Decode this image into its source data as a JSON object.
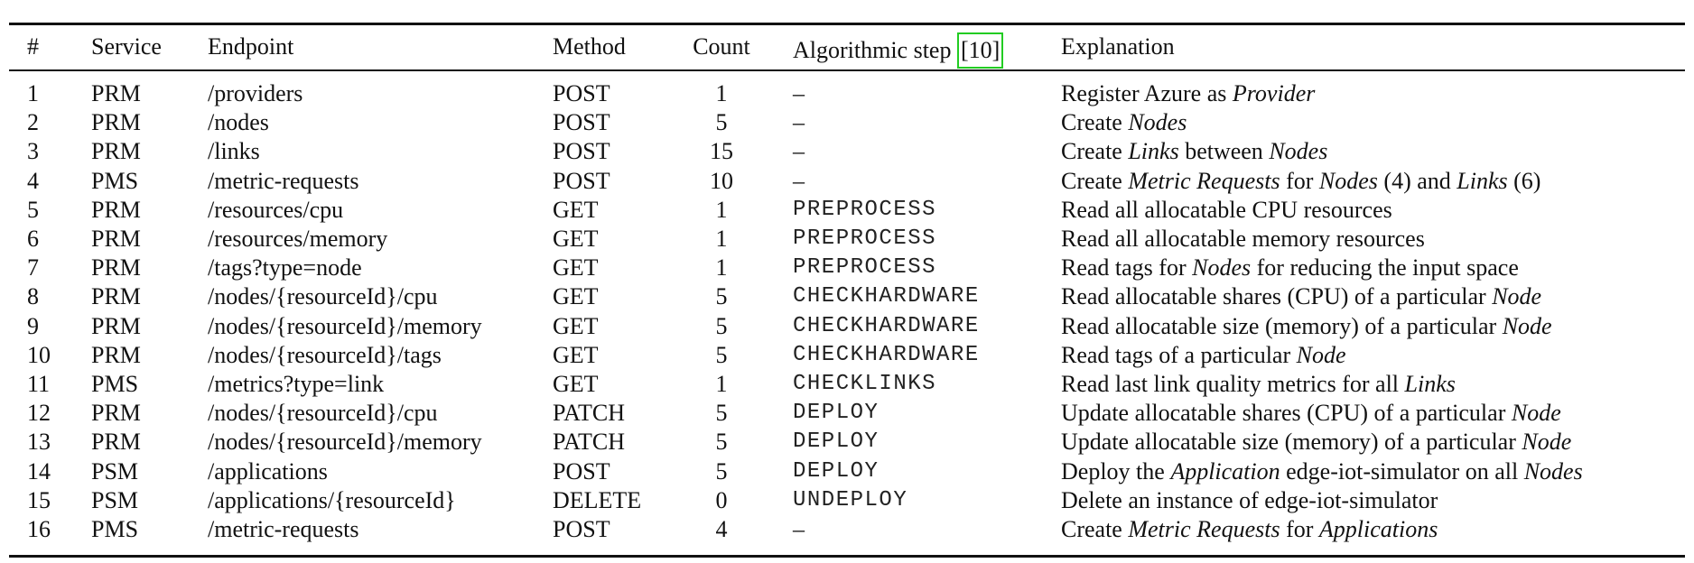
{
  "table": {
    "headers": {
      "num": "#",
      "service": "Service",
      "endpoint": "Endpoint",
      "method": "Method",
      "count": "Count",
      "step": "Algorithmic step",
      "ref": "[10]",
      "explanation": "Explanation"
    },
    "rows": [
      {
        "num": "1",
        "service": "PRM",
        "endpoint": "/providers",
        "method": "POST",
        "count": "1",
        "step": "–",
        "explanation": [
          {
            "t": "Register Azure as ",
            "i": false
          },
          {
            "t": "Provider",
            "i": true
          }
        ]
      },
      {
        "num": "2",
        "service": "PRM",
        "endpoint": "/nodes",
        "method": "POST",
        "count": "5",
        "step": "–",
        "explanation": [
          {
            "t": "Create ",
            "i": false
          },
          {
            "t": "Nodes",
            "i": true
          }
        ]
      },
      {
        "num": "3",
        "service": "PRM",
        "endpoint": "/links",
        "method": "POST",
        "count": "15",
        "step": "–",
        "explanation": [
          {
            "t": "Create ",
            "i": false
          },
          {
            "t": "Links",
            "i": true
          },
          {
            "t": " between ",
            "i": false
          },
          {
            "t": "Nodes",
            "i": true
          }
        ]
      },
      {
        "num": "4",
        "service": "PMS",
        "endpoint": "/metric-requests",
        "method": "POST",
        "count": "10",
        "step": "–",
        "explanation": [
          {
            "t": "Create ",
            "i": false
          },
          {
            "t": "Metric Requests",
            "i": true
          },
          {
            "t": " for ",
            "i": false
          },
          {
            "t": "Nodes",
            "i": true
          },
          {
            "t": " (4) and ",
            "i": false
          },
          {
            "t": "Links",
            "i": true
          },
          {
            "t": " (6)",
            "i": false
          }
        ]
      },
      {
        "num": "5",
        "service": "PRM",
        "endpoint": "/resources/cpu",
        "method": "GET",
        "count": "1",
        "step": "PREPROCESS",
        "explanation": [
          {
            "t": "Read all allocatable CPU resources",
            "i": false
          }
        ]
      },
      {
        "num": "6",
        "service": "PRM",
        "endpoint": "/resources/memory",
        "method": "GET",
        "count": "1",
        "step": "PREPROCESS",
        "explanation": [
          {
            "t": "Read all allocatable memory resources",
            "i": false
          }
        ]
      },
      {
        "num": "7",
        "service": "PRM",
        "endpoint": "/tags?type=node",
        "method": "GET",
        "count": "1",
        "step": "PREPROCESS",
        "explanation": [
          {
            "t": "Read tags for ",
            "i": false
          },
          {
            "t": "Nodes",
            "i": true
          },
          {
            "t": " for reducing the input space",
            "i": false
          }
        ]
      },
      {
        "num": "8",
        "service": "PRM",
        "endpoint": "/nodes/{resourceId}/cpu",
        "method": "GET",
        "count": "5",
        "step": "CHECKHARDWARE",
        "explanation": [
          {
            "t": "Read allocatable shares (CPU) of a particular ",
            "i": false
          },
          {
            "t": "Node",
            "i": true
          }
        ]
      },
      {
        "num": "9",
        "service": "PRM",
        "endpoint": "/nodes/{resourceId}/memory",
        "method": "GET",
        "count": "5",
        "step": "CHECKHARDWARE",
        "explanation": [
          {
            "t": "Read allocatable size (memory) of a particular ",
            "i": false
          },
          {
            "t": "Node",
            "i": true
          }
        ]
      },
      {
        "num": "10",
        "service": "PRM",
        "endpoint": "/nodes/{resourceId}/tags",
        "method": "GET",
        "count": "5",
        "step": "CHECKHARDWARE",
        "explanation": [
          {
            "t": "Read tags of a particular ",
            "i": false
          },
          {
            "t": "Node",
            "i": true
          }
        ]
      },
      {
        "num": "11",
        "service": "PMS",
        "endpoint": "/metrics?type=link",
        "method": "GET",
        "count": "1",
        "step": "CHECKLINKS",
        "explanation": [
          {
            "t": "Read last link quality metrics for all ",
            "i": false
          },
          {
            "t": "Links",
            "i": true
          }
        ]
      },
      {
        "num": "12",
        "service": "PRM",
        "endpoint": "/nodes/{resourceId}/cpu",
        "method": "PATCH",
        "count": "5",
        "step": "DEPLOY",
        "explanation": [
          {
            "t": "Update allocatable shares (CPU) of a particular ",
            "i": false
          },
          {
            "t": "Node",
            "i": true
          }
        ]
      },
      {
        "num": "13",
        "service": "PRM",
        "endpoint": "/nodes/{resourceId}/memory",
        "method": "PATCH",
        "count": "5",
        "step": "DEPLOY",
        "explanation": [
          {
            "t": "Update allocatable size (memory) of a particular ",
            "i": false
          },
          {
            "t": "Node",
            "i": true
          }
        ]
      },
      {
        "num": "14",
        "service": "PSM",
        "endpoint": "/applications",
        "method": "POST",
        "count": "5",
        "step": "DEPLOY",
        "explanation": [
          {
            "t": "Deploy the ",
            "i": false
          },
          {
            "t": "Application",
            "i": true
          },
          {
            "t": " edge-iot-simulator on all ",
            "i": false
          },
          {
            "t": "Nodes",
            "i": true
          }
        ]
      },
      {
        "num": "15",
        "service": "PSM",
        "endpoint": "/applications/{resourceId}",
        "method": "DELETE",
        "count": "0",
        "step": "UNDEPLOY",
        "explanation": [
          {
            "t": "Delete an instance of edge-iot-simulator",
            "i": false
          }
        ]
      },
      {
        "num": "16",
        "service": "PMS",
        "endpoint": "/metric-requests",
        "method": "POST",
        "count": "4",
        "step": "–",
        "explanation": [
          {
            "t": "Create ",
            "i": false
          },
          {
            "t": "Metric Requests",
            "i": true
          },
          {
            "t": " for ",
            "i": false
          },
          {
            "t": "Applications",
            "i": true
          }
        ]
      }
    ]
  }
}
